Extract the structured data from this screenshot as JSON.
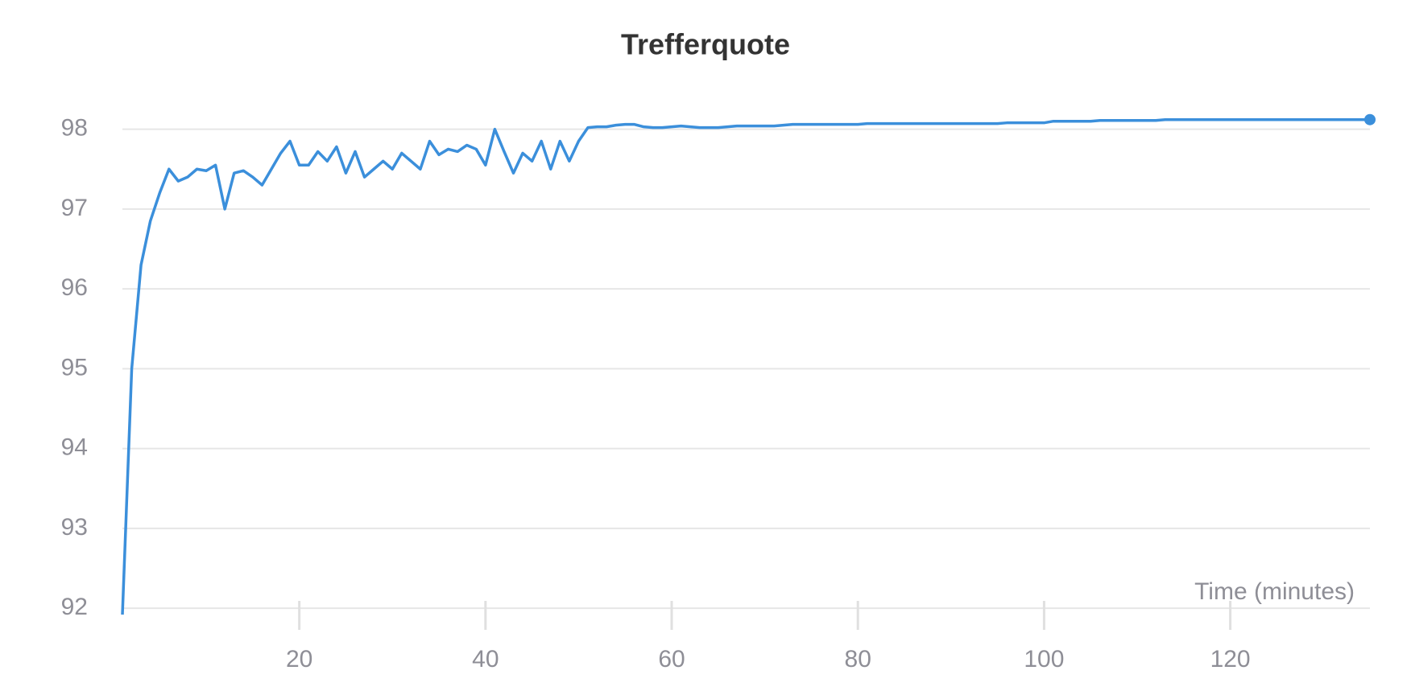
{
  "chart_data": {
    "type": "line",
    "title": "Trefferquote",
    "x_label": "Time (minutes)",
    "x": [
      1,
      2,
      3,
      4,
      5,
      6,
      7,
      8,
      9,
      10,
      11,
      12,
      13,
      14,
      15,
      16,
      17,
      18,
      19,
      20,
      21,
      22,
      23,
      24,
      25,
      26,
      27,
      28,
      29,
      30,
      31,
      32,
      33,
      34,
      35,
      36,
      37,
      38,
      39,
      40,
      41,
      42,
      43,
      44,
      45,
      46,
      47,
      48,
      49,
      50,
      51,
      52,
      53,
      54,
      55,
      56,
      57,
      58,
      59,
      60,
      61,
      62,
      63,
      64,
      65,
      66,
      67,
      68,
      69,
      70,
      71,
      72,
      73,
      74,
      75,
      76,
      77,
      78,
      79,
      80,
      81,
      82,
      83,
      84,
      85,
      86,
      87,
      88,
      89,
      90,
      91,
      92,
      93,
      94,
      95,
      96,
      97,
      98,
      99,
      100,
      101,
      102,
      103,
      104,
      105,
      106,
      107,
      108,
      109,
      110,
      111,
      112,
      113,
      114,
      115,
      116,
      117,
      118,
      119,
      120,
      121,
      122,
      123,
      124,
      125,
      126,
      127,
      128,
      129,
      130,
      131,
      132,
      133,
      134,
      135
    ],
    "series": [
      {
        "name": "Trefferquote",
        "color": "#3b8fdb",
        "values": [
          91.92,
          95.0,
          96.3,
          96.85,
          97.2,
          97.5,
          97.35,
          97.4,
          97.5,
          97.48,
          97.55,
          97.0,
          97.45,
          97.48,
          97.4,
          97.3,
          97.5,
          97.7,
          97.85,
          97.55,
          97.55,
          97.72,
          97.6,
          97.78,
          97.45,
          97.72,
          97.4,
          97.5,
          97.6,
          97.5,
          97.7,
          97.6,
          97.5,
          97.85,
          97.68,
          97.75,
          97.72,
          97.8,
          97.75,
          97.55,
          98.0,
          97.72,
          97.45,
          97.7,
          97.6,
          97.85,
          97.5,
          97.85,
          97.6,
          97.85,
          98.02,
          98.03,
          98.03,
          98.05,
          98.06,
          98.06,
          98.03,
          98.02,
          98.02,
          98.03,
          98.04,
          98.03,
          98.02,
          98.02,
          98.02,
          98.03,
          98.04,
          98.04,
          98.04,
          98.04,
          98.04,
          98.05,
          98.06,
          98.06,
          98.06,
          98.06,
          98.06,
          98.06,
          98.06,
          98.06,
          98.07,
          98.07,
          98.07,
          98.07,
          98.07,
          98.07,
          98.07,
          98.07,
          98.07,
          98.07,
          98.07,
          98.07,
          98.07,
          98.07,
          98.07,
          98.08,
          98.08,
          98.08,
          98.08,
          98.08,
          98.1,
          98.1,
          98.1,
          98.1,
          98.1,
          98.11,
          98.11,
          98.11,
          98.11,
          98.11,
          98.11,
          98.11,
          98.12,
          98.12,
          98.12,
          98.12,
          98.12,
          98.12,
          98.12,
          98.12,
          98.12,
          98.12,
          98.12,
          98.12,
          98.12,
          98.12,
          98.12,
          98.12,
          98.12,
          98.12,
          98.12,
          98.12,
          98.12,
          98.12,
          98.12
        ]
      }
    ],
    "xlim": [
      1,
      135
    ],
    "ylim": [
      91.9,
      98.5
    ],
    "xticks": [
      20,
      40,
      60,
      80,
      100,
      120
    ],
    "yticks": [
      92,
      93,
      94,
      95,
      96,
      97,
      98
    ],
    "grid": true
  }
}
